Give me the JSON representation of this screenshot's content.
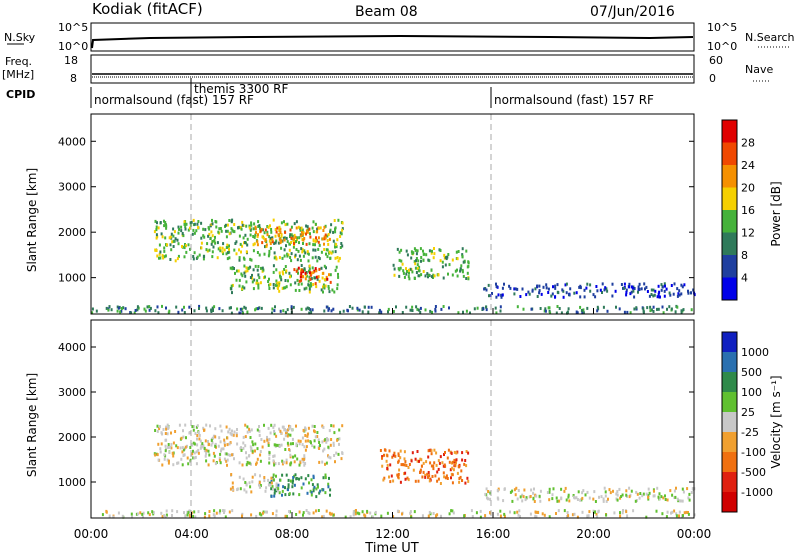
{
  "header": {
    "station": "Kodiak (fitACF)",
    "beam": "Beam 08",
    "date": "07/Jun/2016"
  },
  "top_panels": {
    "nsky_label": "N.Sky",
    "nsky_ticks": [
      "10^5",
      "10^0"
    ],
    "nsearch_label": "N.Search",
    "nsearch_ticks": [
      "10^5",
      "10^0"
    ],
    "freq_label_line1": "Freq.",
    "freq_label_line2": "[MHz]",
    "freq_ticks": [
      "18",
      "8"
    ],
    "nave_label": "Nave",
    "nave_ticks": [
      "60",
      "0"
    ],
    "cpid_label": "CPID",
    "cpid_segments": [
      {
        "text": "normalsound (fast) 157 RF",
        "start_hour": 0
      },
      {
        "text": "themis 3300 RF",
        "start_hour": 4
      },
      {
        "text": "normalsound (fast) 157 RF",
        "start_hour": 16
      }
    ]
  },
  "chart_data": [
    {
      "type": "heatmap",
      "name": "power",
      "ylabel": "Slant Range [km]",
      "y_ticks": [
        "1000",
        "2000",
        "3000",
        "4000"
      ],
      "ylim": [
        200,
        4600
      ],
      "xlim_hours": [
        0,
        24
      ],
      "colorbar_label": "Power [dB]",
      "colorbar_ticks": [
        "4",
        "8",
        "12",
        "16",
        "20",
        "24",
        "28"
      ],
      "colorbar_colors": [
        "#0000e8",
        "#1f3f9f",
        "#2f7a5a",
        "#45b23a",
        "#f5d000",
        "#f59000",
        "#f04800",
        "#e00000"
      ],
      "regions": [
        {
          "x": [
            2.5,
            10.0
          ],
          "y": [
            1400,
            2300
          ],
          "level": 3
        },
        {
          "x": [
            6.5,
            9.5
          ],
          "y": [
            1750,
            2150
          ],
          "level": 5
        },
        {
          "x": [
            5.5,
            9.8
          ],
          "y": [
            700,
            1300
          ],
          "level": 3
        },
        {
          "x": [
            8.0,
            9.5
          ],
          "y": [
            900,
            1250
          ],
          "level": 6
        },
        {
          "x": [
            12.0,
            15.0
          ],
          "y": [
            1000,
            1700
          ],
          "level": 3
        },
        {
          "x": [
            15.5,
            24.0
          ],
          "y": [
            600,
            900
          ],
          "level": 1
        },
        {
          "x": [
            0.0,
            24.0
          ],
          "y": [
            250,
            400
          ],
          "level": 2
        }
      ]
    },
    {
      "type": "heatmap",
      "name": "velocity",
      "ylabel": "Slant Range [km]",
      "y_ticks": [
        "1000",
        "2000",
        "3000",
        "4000"
      ],
      "ylim": [
        200,
        4600
      ],
      "xlim_hours": [
        0,
        24
      ],
      "colorbar_label": "Velocity [m s⁻¹]",
      "colorbar_ticks": [
        "1000",
        "500",
        "100",
        "25",
        "-25",
        "-100",
        "-500",
        "-1000"
      ],
      "colorbar_colors": [
        "#1020c0",
        "#2a70b0",
        "#2f8a4a",
        "#60c030",
        "#c8c8c8",
        "#f0a030",
        "#f07010",
        "#e02010",
        "#d00000"
      ],
      "regions": [
        {
          "x": [
            2.5,
            10.0
          ],
          "y": [
            1400,
            2300
          ],
          "level": 4
        },
        {
          "x": [
            7.0,
            9.5
          ],
          "y": [
            700,
            1200
          ],
          "level": 2
        },
        {
          "x": [
            5.5,
            7.5
          ],
          "y": [
            800,
            1200
          ],
          "level": 4
        },
        {
          "x": [
            11.5,
            15.0
          ],
          "y": [
            1000,
            1750
          ],
          "level": 6
        },
        {
          "x": [
            15.5,
            24.0
          ],
          "y": [
            600,
            900
          ],
          "level": 4
        },
        {
          "x": [
            0.0,
            24.0
          ],
          "y": [
            250,
            400
          ],
          "level": 4
        }
      ]
    }
  ],
  "x_axis": {
    "label": "Time UT",
    "ticks": [
      "00:00",
      "04:00",
      "08:00",
      "12:00",
      "16:00",
      "20:00",
      "00:00"
    ]
  }
}
